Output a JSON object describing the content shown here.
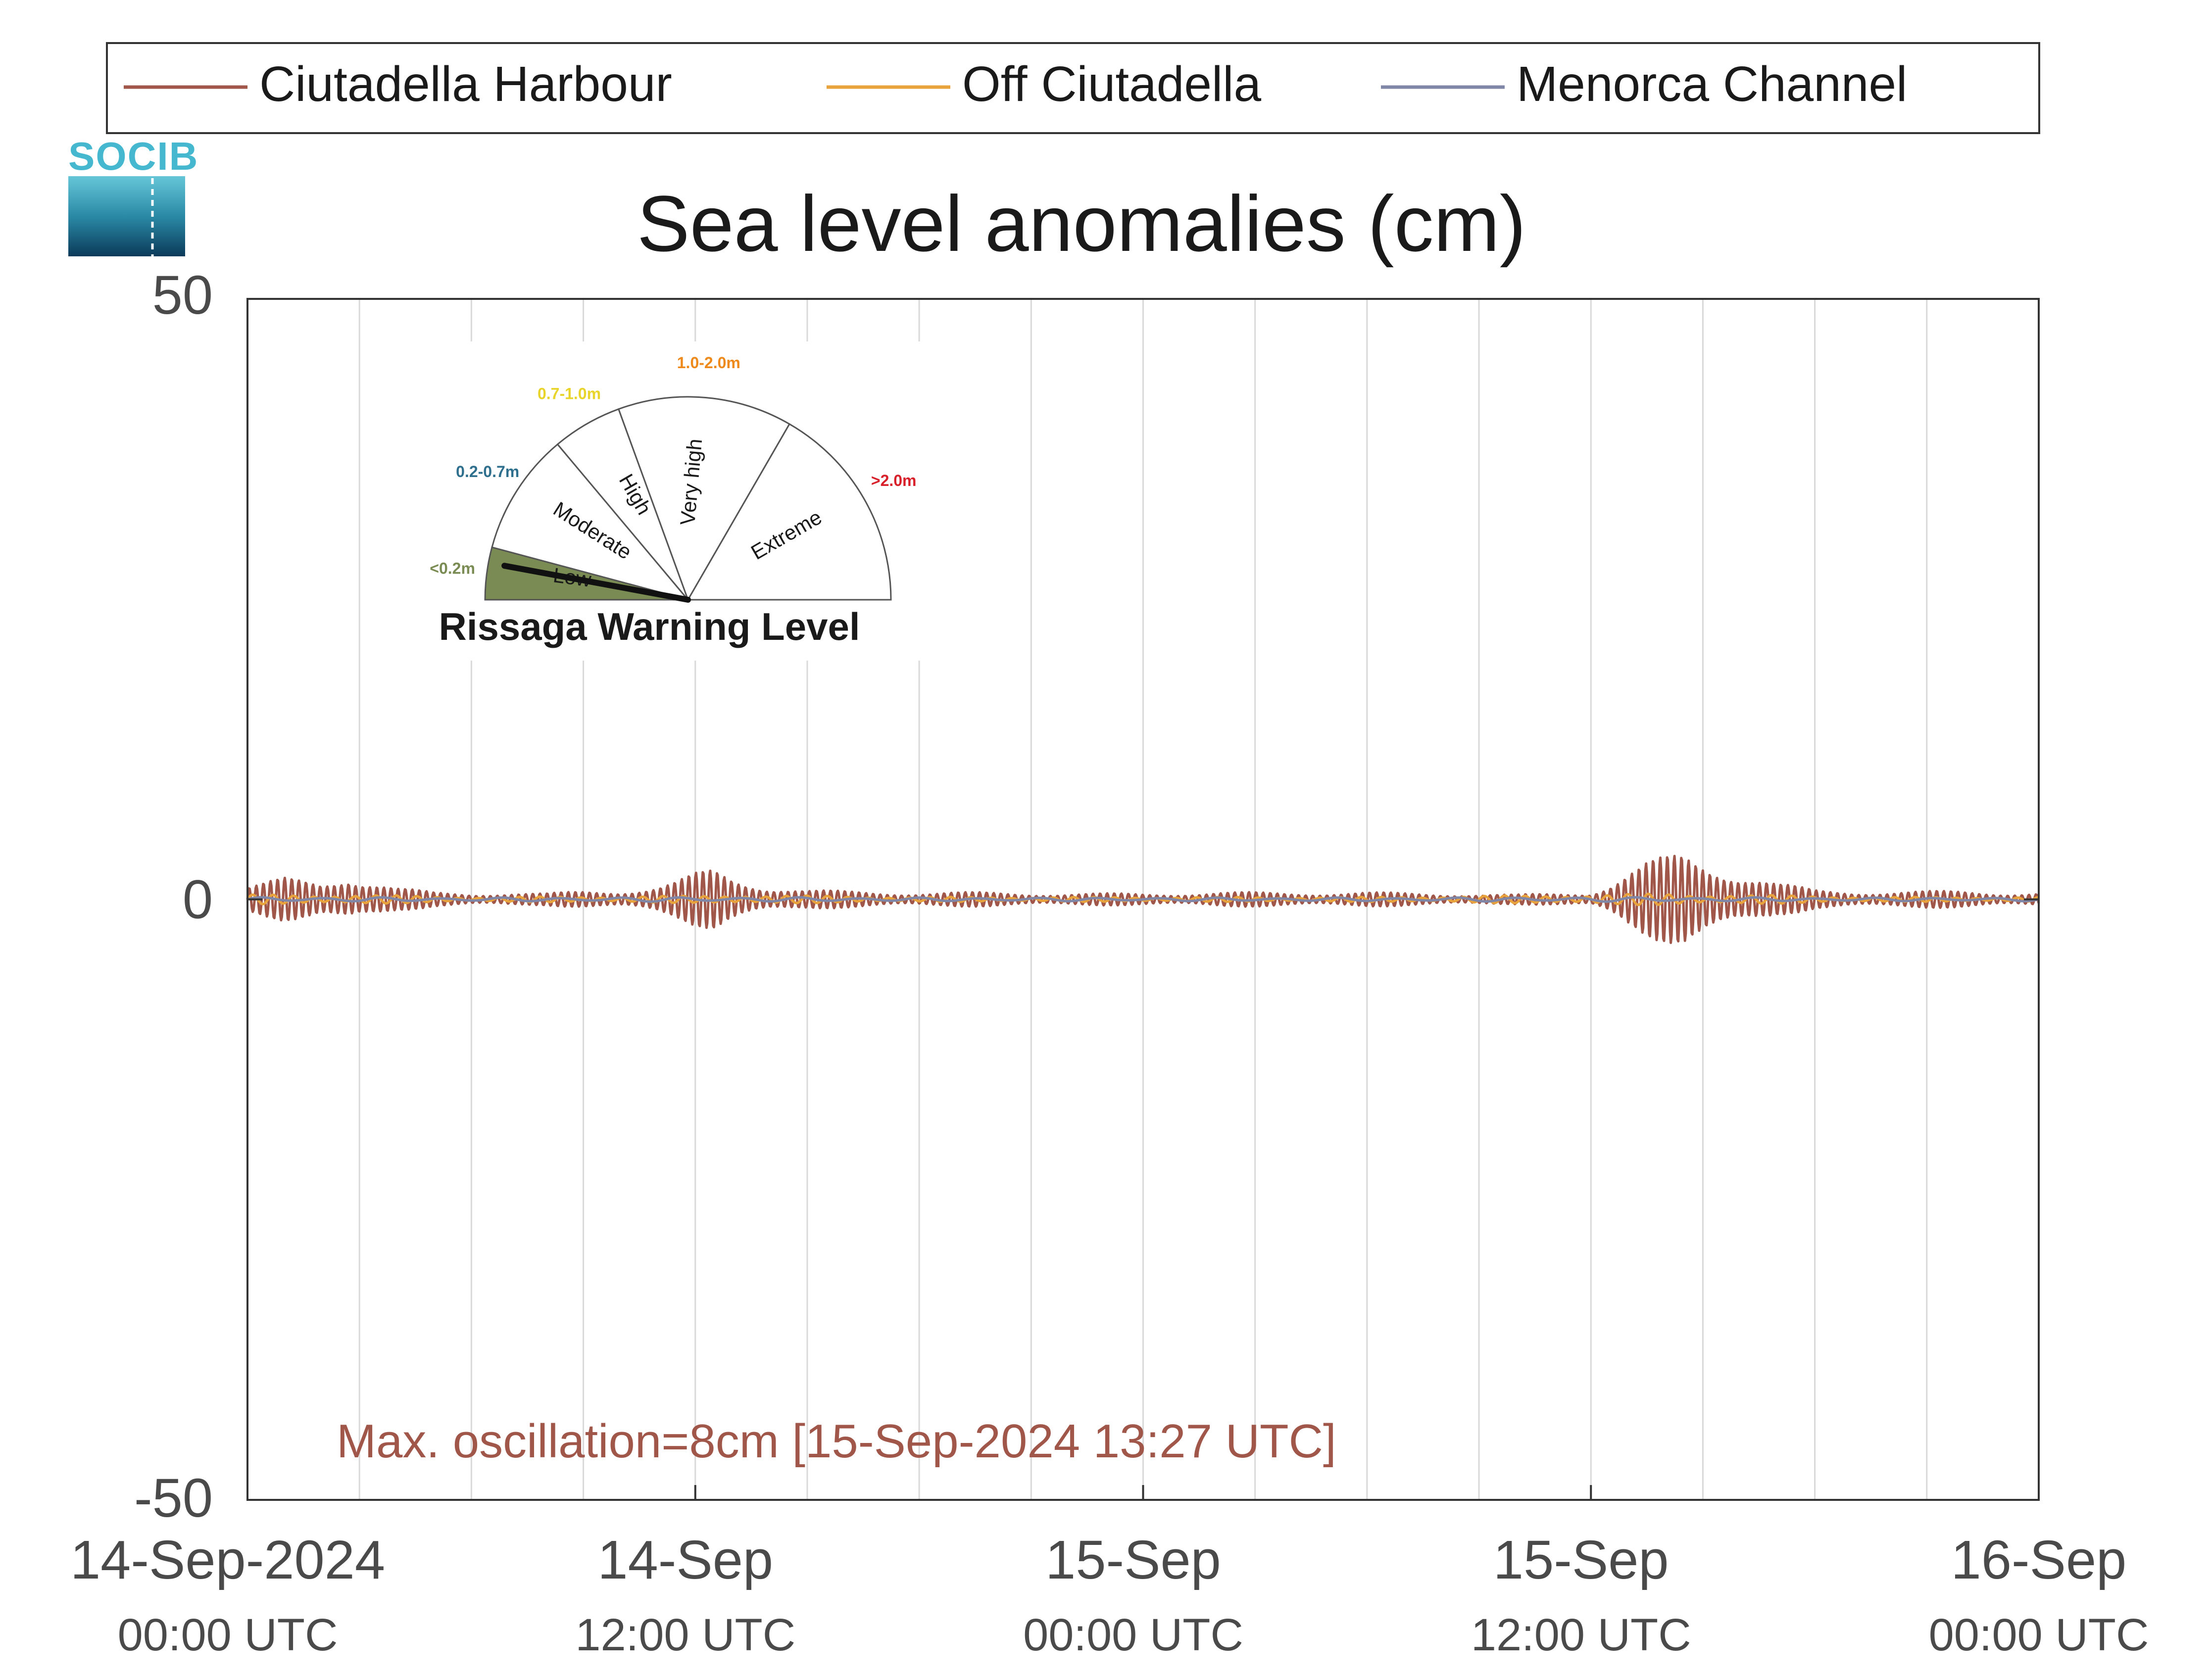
{
  "logo": {
    "text": "SOCIB"
  },
  "legend": {
    "placement": "top",
    "entries": [
      {
        "label": "Ciutadella Harbour",
        "color": "#a0574a"
      },
      {
        "label": "Off Ciutadella",
        "color": "#e8a33d"
      },
      {
        "label": "Menorca Channel",
        "color": "#7f86a6"
      }
    ]
  },
  "annotation": {
    "text": "Max. oscillation=8cm [15-Sep-2024 13:27 UTC]",
    "color": "#a0574a"
  },
  "gauge": {
    "title": "Rissaga Warning Level",
    "level_index": 0,
    "sectors": [
      {
        "name": "Low",
        "range": "<0.2m",
        "color": "#7a8c53"
      },
      {
        "name": "Moderate",
        "range": "0.2-0.7m",
        "color": "#2f6f8e"
      },
      {
        "name": "High",
        "range": "0.7-1.0m",
        "color": "#e8d42a"
      },
      {
        "name": "Very high",
        "range": "1.0-2.0m",
        "color": "#ee8a1c"
      },
      {
        "name": "Extreme",
        "range": ">2.0m",
        "color": "#d8202a"
      }
    ]
  },
  "chart_data": {
    "type": "line",
    "title": "Sea level anomalies (cm)",
    "xlabel": "",
    "ylabel": "",
    "ylim": [
      -50,
      50
    ],
    "yticks": [
      -50,
      0,
      50
    ],
    "xlim_hours": [
      0,
      48
    ],
    "x_unit": "hours since 14-Sep-2024 00:00 UTC",
    "grid": "vertical",
    "xticks": [
      {
        "hours": 0,
        "line1": "14-Sep-2024",
        "line2": "00:00 UTC"
      },
      {
        "hours": 12,
        "line1": "14-Sep",
        "line2": "12:00 UTC"
      },
      {
        "hours": 24,
        "line1": "15-Sep",
        "line2": "00:00 UTC"
      },
      {
        "hours": 36,
        "line1": "15-Sep",
        "line2": "12:00 UTC"
      },
      {
        "hours": 48,
        "line1": "16-Sep",
        "line2": "00:00 UTC"
      }
    ],
    "minor_gridlines_hours": [
      3,
      6,
      9,
      15,
      18,
      21,
      27,
      30,
      33,
      39,
      42,
      45
    ],
    "series": [
      {
        "name": "Ciutadella Harbour",
        "color": "#a0574a",
        "envelope_hours": [
          0,
          1,
          2,
          2.7,
          3,
          4,
          5,
          6,
          7,
          8,
          9,
          10,
          11,
          11.5,
          12,
          12.5,
          13,
          14,
          15,
          16,
          18,
          20,
          22,
          24,
          26,
          28,
          30,
          32,
          34,
          36,
          36.5,
          37,
          37.5,
          38,
          38.5,
          39,
          39.5,
          40,
          40.5,
          41,
          42,
          43,
          44,
          45,
          46,
          47,
          48
        ],
        "envelope_cm": [
          1.2,
          1.8,
          1.5,
          2.5,
          2.0,
          1.0,
          0.6,
          0.5,
          0.6,
          0.5,
          0.7,
          0.8,
          1.2,
          1.6,
          2.2,
          2.6,
          2.0,
          1.2,
          0.8,
          0.7,
          0.6,
          0.6,
          0.5,
          0.5,
          0.6,
          0.6,
          0.6,
          0.5,
          0.4,
          0.6,
          1.5,
          2.5,
          3.2,
          3.6,
          4.0,
          3.6,
          3.2,
          2.6,
          2.0,
          1.4,
          0.8,
          0.7,
          0.7,
          0.7,
          0.7,
          0.6,
          0.6
        ]
      },
      {
        "name": "Off Ciutadella",
        "color": "#e8a33d",
        "envelope_hours": [
          0,
          3,
          6,
          12,
          13,
          18,
          24,
          30,
          36,
          38,
          40,
          44,
          48
        ],
        "envelope_cm": [
          0.4,
          0.4,
          0.2,
          0.3,
          0.4,
          0.2,
          0.2,
          0.2,
          0.4,
          0.5,
          0.4,
          0.2,
          0.2
        ]
      },
      {
        "name": "Menorca Channel",
        "color": "#7f86a6",
        "envelope_hours": [
          0,
          6,
          12,
          18,
          24,
          30,
          36,
          42,
          48
        ],
        "envelope_cm": [
          0.2,
          0.15,
          0.2,
          0.15,
          0.15,
          0.15,
          0.2,
          0.15,
          0.15
        ]
      }
    ]
  }
}
